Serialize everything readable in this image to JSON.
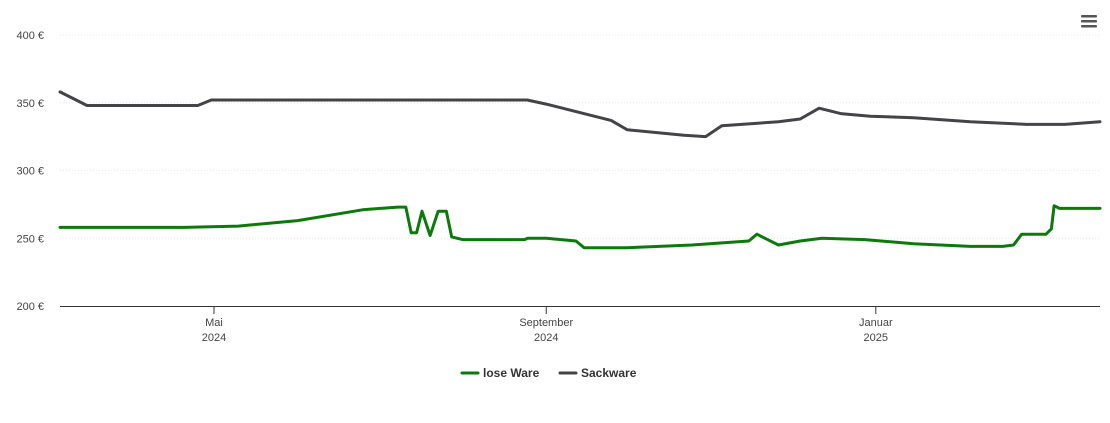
{
  "menu": {
    "icon": "hamburger-menu-icon"
  },
  "chart_data": {
    "type": "line",
    "title": "",
    "xlabel": "",
    "ylabel": "",
    "x_range": [
      "2024-03-05",
      "2025-03-25"
    ],
    "ylim": [
      200,
      400
    ],
    "y_ticks": [
      {
        "value": 200,
        "label": "200 €"
      },
      {
        "value": 250,
        "label": "250 €"
      },
      {
        "value": 300,
        "label": "300 €"
      },
      {
        "value": 350,
        "label": "350 €"
      },
      {
        "value": 400,
        "label": "400 €"
      }
    ],
    "x_ticks": [
      {
        "date": "2024-05-01",
        "month": "Mai",
        "year": "2024"
      },
      {
        "date": "2024-09-01",
        "month": "September",
        "year": "2024"
      },
      {
        "date": "2025-01-01",
        "month": "Januar",
        "year": "2025"
      }
    ],
    "grid": true,
    "legend_position": "bottom-center",
    "series": [
      {
        "name": "lose Ware",
        "color": "#0b7a0b",
        "points": [
          [
            "2024-03-05",
            258
          ],
          [
            "2024-04-01",
            258
          ],
          [
            "2024-04-20",
            258
          ],
          [
            "2024-05-10",
            259
          ],
          [
            "2024-06-01",
            263
          ],
          [
            "2024-06-25",
            271
          ],
          [
            "2024-07-08",
            273
          ],
          [
            "2024-07-11",
            273
          ],
          [
            "2024-07-13",
            254
          ],
          [
            "2024-07-15",
            254
          ],
          [
            "2024-07-17",
            270
          ],
          [
            "2024-07-20",
            252
          ],
          [
            "2024-07-23",
            270
          ],
          [
            "2024-07-26",
            270
          ],
          [
            "2024-07-28",
            251
          ],
          [
            "2024-08-01",
            249
          ],
          [
            "2024-08-10",
            249
          ],
          [
            "2024-08-24",
            249
          ],
          [
            "2024-08-25",
            250
          ],
          [
            "2024-09-01",
            250
          ],
          [
            "2024-09-12",
            248
          ],
          [
            "2024-09-15",
            243
          ],
          [
            "2024-10-01",
            243
          ],
          [
            "2024-10-25",
            245
          ],
          [
            "2024-11-15",
            248
          ],
          [
            "2024-11-18",
            253
          ],
          [
            "2024-11-21",
            250
          ],
          [
            "2024-11-26",
            245
          ],
          [
            "2024-12-04",
            248
          ],
          [
            "2024-12-12",
            250
          ],
          [
            "2024-12-28",
            249
          ],
          [
            "2025-01-15",
            246
          ],
          [
            "2025-02-05",
            244
          ],
          [
            "2025-02-17",
            244
          ],
          [
            "2025-02-21",
            245
          ],
          [
            "2025-02-24",
            253
          ],
          [
            "2025-03-02",
            253
          ],
          [
            "2025-03-05",
            253
          ],
          [
            "2025-03-07",
            257
          ],
          [
            "2025-03-08",
            274
          ],
          [
            "2025-03-10",
            272
          ],
          [
            "2025-03-24",
            272
          ],
          [
            "2025-03-25",
            272
          ]
        ]
      },
      {
        "name": "Sackware",
        "color": "#434348",
        "points": [
          [
            "2024-03-05",
            358
          ],
          [
            "2024-03-15",
            348
          ],
          [
            "2024-04-01",
            348
          ],
          [
            "2024-04-25",
            348
          ],
          [
            "2024-04-30",
            352
          ],
          [
            "2024-05-04",
            352
          ],
          [
            "2024-06-01",
            352
          ],
          [
            "2024-07-01",
            352
          ],
          [
            "2024-08-01",
            352
          ],
          [
            "2024-08-25",
            352
          ],
          [
            "2024-09-01",
            349
          ],
          [
            "2024-09-25",
            337
          ],
          [
            "2024-10-01",
            330
          ],
          [
            "2024-10-22",
            326
          ],
          [
            "2024-10-30",
            325
          ],
          [
            "2024-11-05",
            333
          ],
          [
            "2024-11-26",
            336
          ],
          [
            "2024-12-04",
            338
          ],
          [
            "2024-12-11",
            346
          ],
          [
            "2024-12-19",
            342
          ],
          [
            "2024-12-30",
            340
          ],
          [
            "2025-01-15",
            339
          ],
          [
            "2025-02-05",
            336
          ],
          [
            "2025-02-26",
            334
          ],
          [
            "2025-03-12",
            334
          ],
          [
            "2025-03-25",
            336
          ]
        ]
      }
    ]
  }
}
